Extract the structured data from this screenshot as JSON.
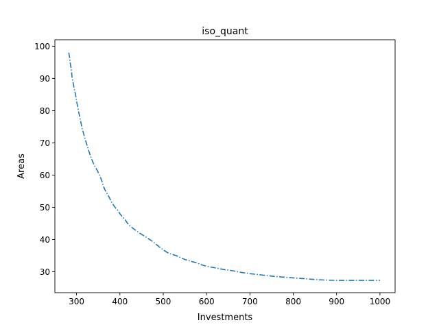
{
  "chart_data": {
    "type": "line",
    "title": "iso_quant",
    "xlabel": "Investments",
    "ylabel": "Areas",
    "xlim": [
      250,
      1035
    ],
    "ylim": [
      23.5,
      102
    ],
    "xticks": [
      300,
      400,
      500,
      600,
      700,
      800,
      900,
      1000
    ],
    "yticks": [
      30,
      40,
      50,
      60,
      70,
      80,
      90,
      100
    ],
    "grid": false,
    "line_style": "dashdot",
    "series": [
      {
        "color": "#1f77b4",
        "x": [
          282,
          283,
          284,
          285,
          287,
          289,
          290,
          291,
          293,
          295,
          298,
          301,
          305,
          309,
          313,
          318,
          323,
          328,
          333,
          338,
          343,
          348,
          353,
          358,
          362,
          366,
          370,
          375,
          380,
          385,
          390,
          395,
          400,
          405,
          410,
          420,
          430,
          440,
          450,
          460,
          470,
          480,
          490,
          500,
          510,
          520,
          530,
          540,
          550,
          560,
          570,
          580,
          590,
          600,
          620,
          640,
          660,
          680,
          700,
          720,
          740,
          760,
          780,
          800,
          820,
          840,
          860,
          880,
          900,
          920,
          940,
          960,
          980,
          1000
        ],
        "y": [
          98,
          97.2,
          96.5,
          95.2,
          93.5,
          91.5,
          89.8,
          89.5,
          88,
          86.5,
          84.8,
          82.3,
          79.5,
          77,
          74.5,
          72,
          69.8,
          67.6,
          65.6,
          63.9,
          62.5,
          61.4,
          59.9,
          58.4,
          56.5,
          55.3,
          54.4,
          53.2,
          51.8,
          50.7,
          49.8,
          49.1,
          48.0,
          47.2,
          46.5,
          44.6,
          43.5,
          42.5,
          41.6,
          40.8,
          39.9,
          38.9,
          37.8,
          36.8,
          35.9,
          35.4,
          35.0,
          34.4,
          33.8,
          33.4,
          33.0,
          32.6,
          32.1,
          31.7,
          31.2,
          30.7,
          30.3,
          29.8,
          29.4,
          29.1,
          28.8,
          28.5,
          28.3,
          28.1,
          27.9,
          27.7,
          27.5,
          27.4,
          27.3,
          27.3,
          27.3,
          27.3,
          27.3,
          27.3
        ]
      }
    ]
  }
}
